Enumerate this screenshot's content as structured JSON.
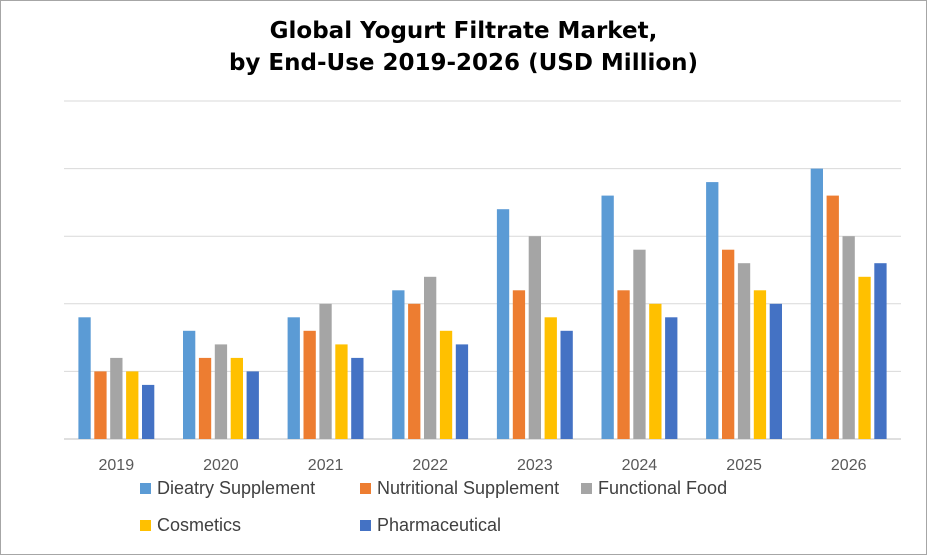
{
  "chart_data": {
    "type": "bar",
    "title_lines": [
      "Global Yogurt Filtrate Market,",
      "by End-Use 2019-2026 (USD Million)"
    ],
    "categories": [
      "2019",
      "2020",
      "2021",
      "2022",
      "2023",
      "2024",
      "2025",
      "2026"
    ],
    "series": [
      {
        "name": "Dieatry Supplement",
        "color": "#5b9bd5",
        "values": [
          9,
          8,
          9,
          11,
          17,
          18,
          19,
          20
        ]
      },
      {
        "name": "Nutritional Supplement",
        "color": "#ed7d31",
        "values": [
          5,
          6,
          8,
          10,
          11,
          11,
          14,
          18
        ]
      },
      {
        "name": "Functional Food",
        "color": "#a5a5a5",
        "values": [
          6,
          7,
          10,
          12,
          15,
          14,
          13,
          15
        ]
      },
      {
        "name": "Cosmetics",
        "color": "#ffc000",
        "values": [
          5,
          6,
          7,
          8,
          9,
          10,
          11,
          12
        ]
      },
      {
        "name": "Pharmaceutical",
        "color": "#4472c4",
        "values": [
          4,
          5,
          6,
          7,
          8,
          9,
          10,
          13
        ]
      }
    ],
    "ylim": [
      0,
      25
    ],
    "y_gridlines": [
      5,
      10,
      15,
      20,
      25
    ],
    "y_tick_labels_shown": false,
    "grid": true,
    "legend_position": "bottom"
  }
}
